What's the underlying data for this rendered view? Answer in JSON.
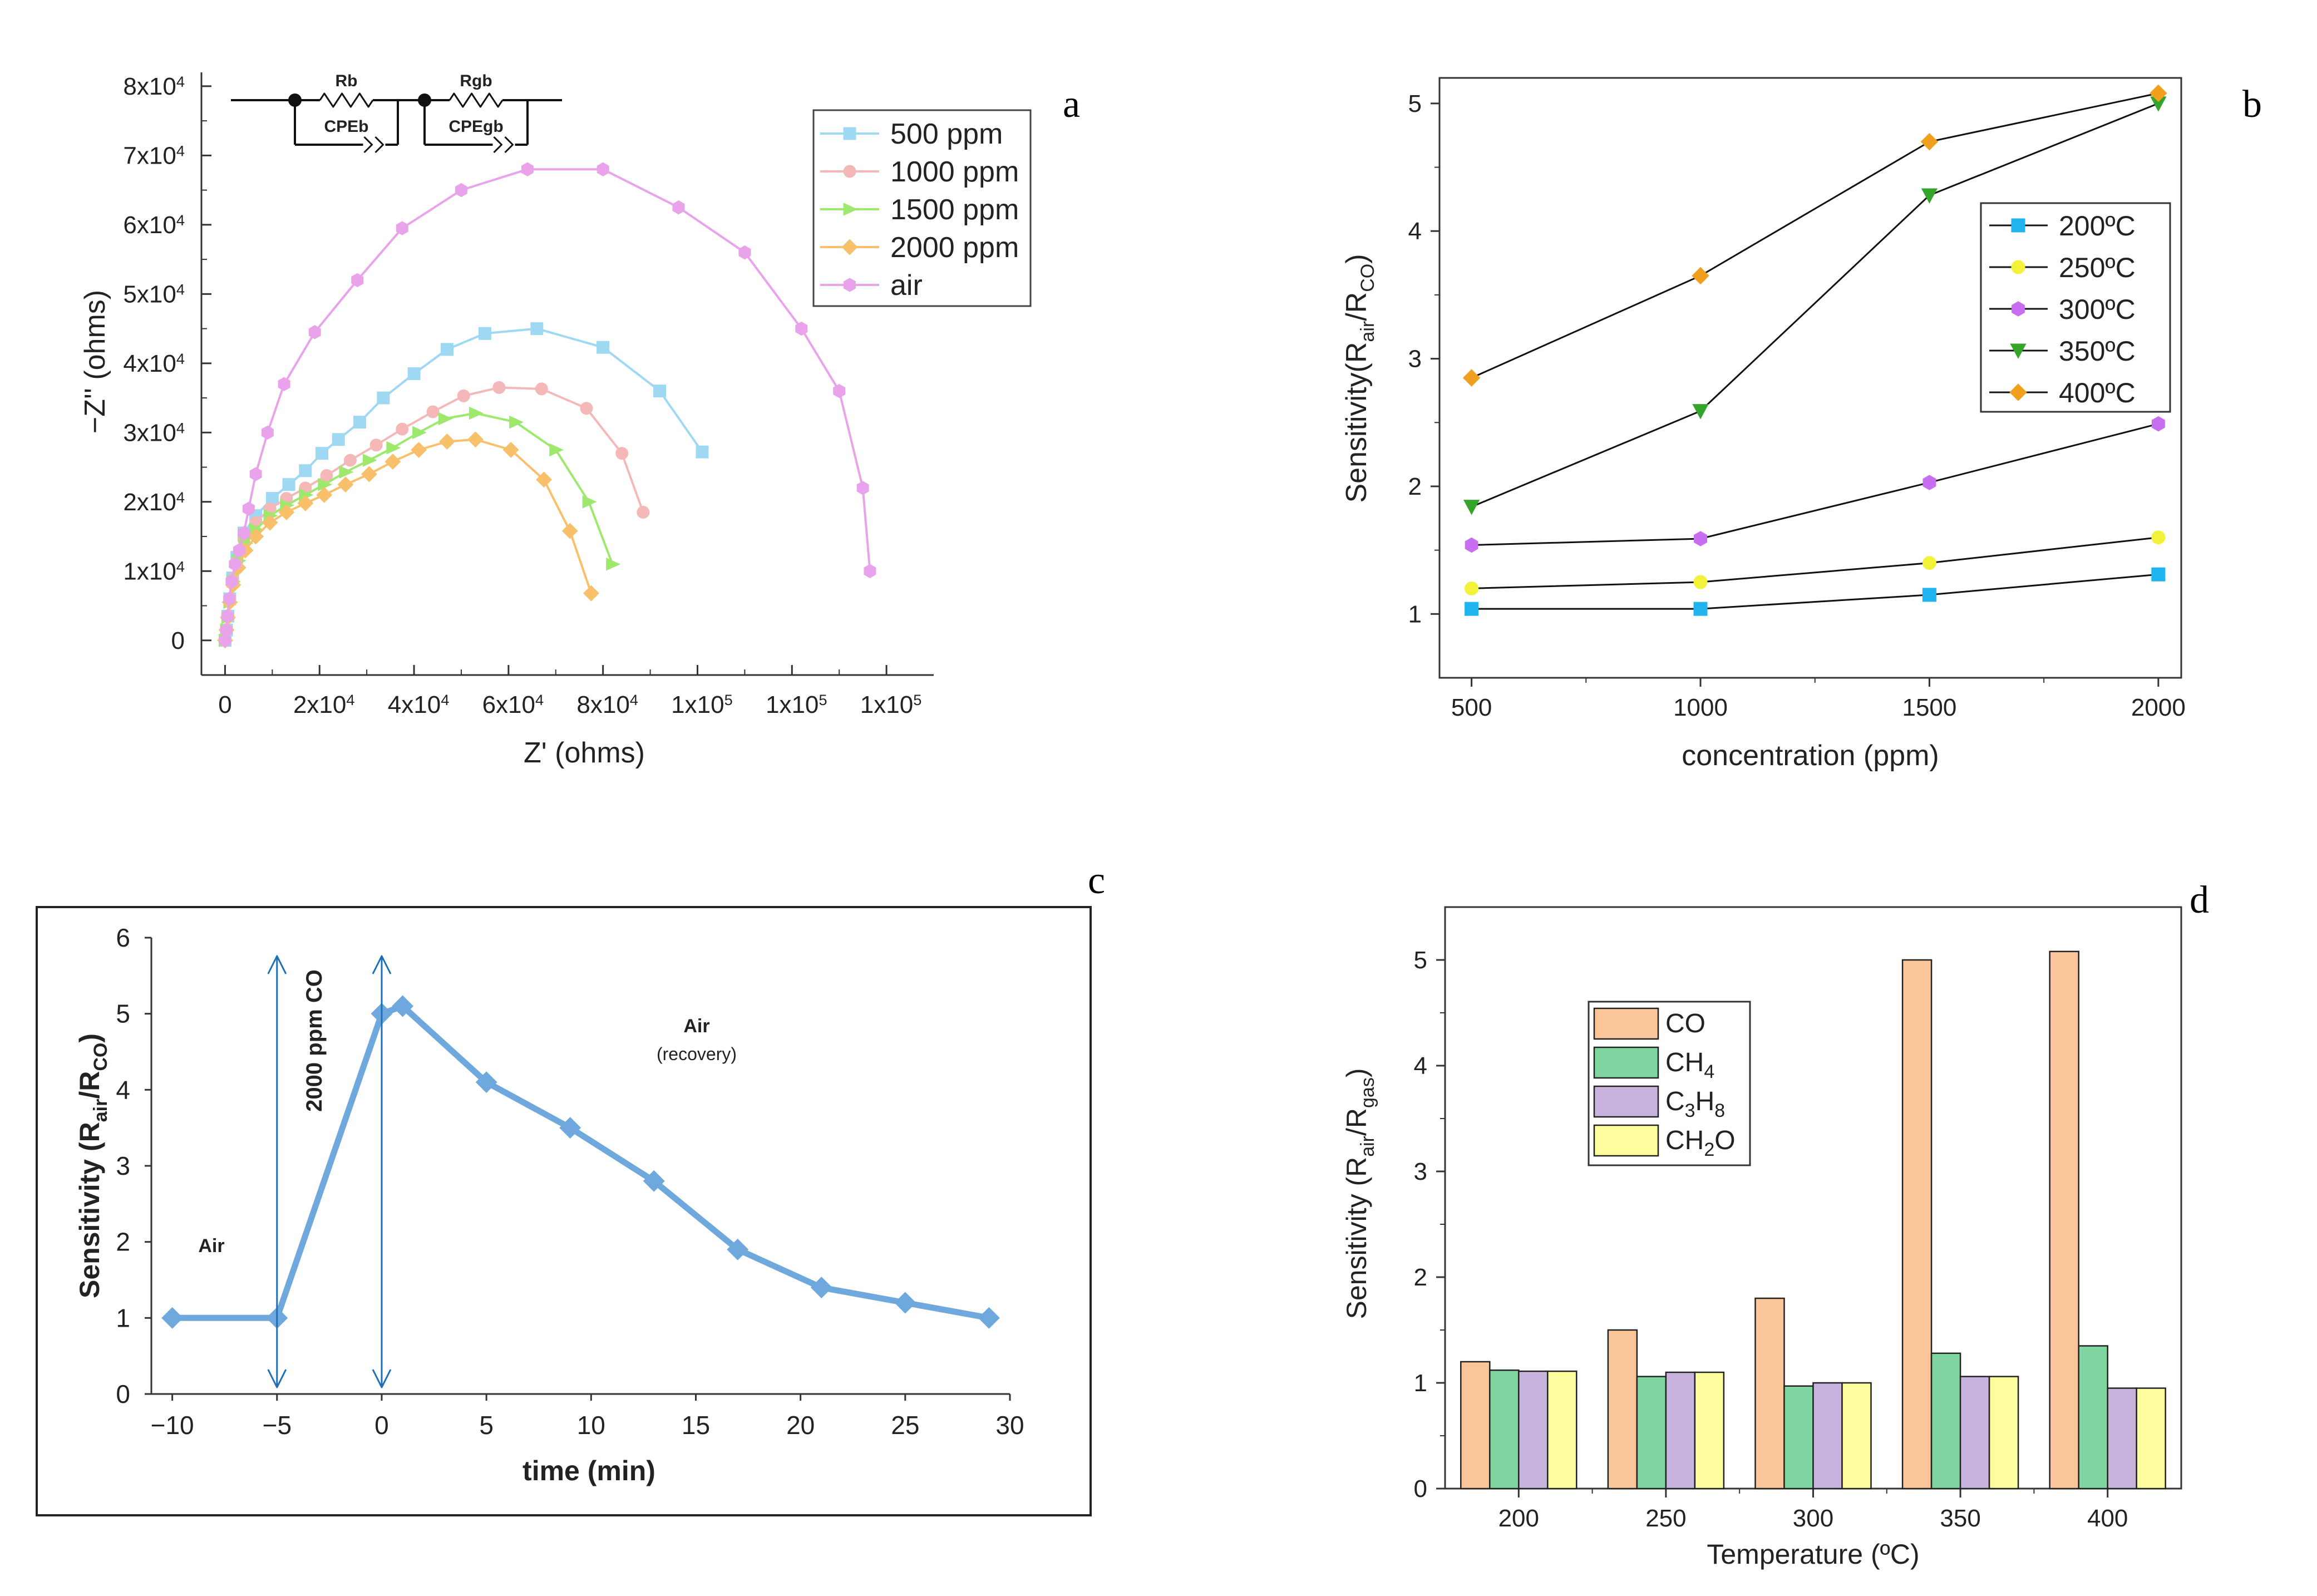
{
  "panel_letters": {
    "a": "a",
    "b": "b",
    "c": "c",
    "d": "d"
  },
  "chart_data": [
    {
      "panel": "a",
      "type": "line",
      "title": "",
      "xlabel": "Z' (ohms)",
      "ylabel": "−Z'' (ohms)",
      "xlim": [
        -5000,
        150000
      ],
      "ylim": [
        -5000,
        82000
      ],
      "xtick_values": [
        0,
        20000,
        40000,
        60000,
        80000,
        100000,
        120000,
        140000
      ],
      "xtick_labels": [
        {
          "pre": "0",
          "sup": ""
        },
        {
          "pre": "2x10",
          "sup": "4"
        },
        {
          "pre": "4x10",
          "sup": "4"
        },
        {
          "pre": "6x10",
          "sup": "4"
        },
        {
          "pre": "8x10",
          "sup": "4"
        },
        {
          "pre": "1x10",
          "sup": "5"
        },
        {
          "pre": "1x10",
          "sup": "5"
        },
        {
          "pre": "1x10",
          "sup": "5"
        }
      ],
      "ytick_values": [
        0,
        10000,
        20000,
        30000,
        40000,
        50000,
        60000,
        70000,
        80000
      ],
      "ytick_labels": [
        {
          "pre": "0",
          "sup": ""
        },
        {
          "pre": "1x10",
          "sup": "4"
        },
        {
          "pre": "2x10",
          "sup": "4"
        },
        {
          "pre": "3x10",
          "sup": "4"
        },
        {
          "pre": "4x10",
          "sup": "4"
        },
        {
          "pre": "5x10",
          "sup": "4"
        },
        {
          "pre": "6x10",
          "sup": "4"
        },
        {
          "pre": "7x10",
          "sup": "4"
        },
        {
          "pre": "8x10",
          "sup": "4"
        }
      ],
      "circuit": {
        "r1": "Rb",
        "c1": "CPEb",
        "r2": "Rgb",
        "c2": "CPEgb"
      },
      "legend_position": "top-right",
      "series": [
        {
          "name": "500 ppm",
          "color": "#9fd8f2",
          "marker": "square",
          "points": [
            [
              0,
              0
            ],
            [
              300,
              1500
            ],
            [
              600,
              3500
            ],
            [
              1000,
              6000
            ],
            [
              1600,
              9000
            ],
            [
              2500,
              12000
            ],
            [
              4000,
              15500
            ],
            [
              6500,
              18000
            ],
            [
              10000,
              20500
            ],
            [
              13500,
              22500
            ],
            [
              17000,
              24500
            ],
            [
              20500,
              27000
            ],
            [
              24000,
              29000
            ],
            [
              28500,
              31500
            ],
            [
              33500,
              35000
            ],
            [
              40000,
              38500
            ],
            [
              47000,
              42000
            ],
            [
              55000,
              44300
            ],
            [
              66000,
              45000
            ],
            [
              80000,
              42300
            ],
            [
              92000,
              36000
            ],
            [
              101000,
              27200
            ]
          ]
        },
        {
          "name": "1000 ppm",
          "color": "#f5b8b8",
          "marker": "circle",
          "points": [
            [
              0,
              0
            ],
            [
              300,
              1500
            ],
            [
              600,
              3500
            ],
            [
              1000,
              6000
            ],
            [
              1600,
              8800
            ],
            [
              2500,
              11500
            ],
            [
              4000,
              14500
            ],
            [
              6500,
              17000
            ],
            [
              9500,
              19000
            ],
            [
              13000,
              20500
            ],
            [
              17000,
              22000
            ],
            [
              21500,
              23800
            ],
            [
              26500,
              26000
            ],
            [
              32000,
              28200
            ],
            [
              37500,
              30500
            ],
            [
              44000,
              33000
            ],
            [
              50500,
              35300
            ],
            [
              58000,
              36500
            ],
            [
              67000,
              36300
            ],
            [
              76500,
              33500
            ],
            [
              84000,
              27000
            ],
            [
              88500,
              18500
            ]
          ]
        },
        {
          "name": "1500 ppm",
          "color": "#9ee86e",
          "marker": "triangle-right",
          "points": [
            [
              0,
              0
            ],
            [
              300,
              1500
            ],
            [
              600,
              3300
            ],
            [
              1000,
              5500
            ],
            [
              1700,
              8500
            ],
            [
              2800,
              11500
            ],
            [
              4300,
              14000
            ],
            [
              6500,
              16000
            ],
            [
              9500,
              18000
            ],
            [
              13000,
              19500
            ],
            [
              17000,
              21000
            ],
            [
              21000,
              22500
            ],
            [
              25500,
              24300
            ],
            [
              30500,
              26000
            ],
            [
              35500,
              27800
            ],
            [
              41000,
              30000
            ],
            [
              46500,
              32000
            ],
            [
              53000,
              32800
            ],
            [
              61500,
              31500
            ],
            [
              70000,
              27500
            ],
            [
              77000,
              20000
            ],
            [
              82000,
              11000
            ]
          ]
        },
        {
          "name": "2000 ppm",
          "color": "#f8c06a",
          "marker": "diamond",
          "points": [
            [
              0,
              0
            ],
            [
              300,
              1500
            ],
            [
              600,
              3300
            ],
            [
              1000,
              5500
            ],
            [
              1700,
              8000
            ],
            [
              2800,
              10500
            ],
            [
              4300,
              13000
            ],
            [
              6500,
              15000
            ],
            [
              9500,
              17000
            ],
            [
              13000,
              18500
            ],
            [
              17000,
              19800
            ],
            [
              21000,
              21000
            ],
            [
              25500,
              22500
            ],
            [
              30500,
              24000
            ],
            [
              35500,
              25800
            ],
            [
              41000,
              27500
            ],
            [
              47000,
              28700
            ],
            [
              53000,
              29000
            ],
            [
              60500,
              27500
            ],
            [
              67500,
              23200
            ],
            [
              73000,
              15800
            ],
            [
              77500,
              6800
            ]
          ]
        },
        {
          "name": "air",
          "color": "#e9a3ea",
          "marker": "hexagon",
          "points": [
            [
              0,
              0
            ],
            [
              300,
              1500
            ],
            [
              500,
              3500
            ],
            [
              900,
              6000
            ],
            [
              1400,
              8500
            ],
            [
              2100,
              11000
            ],
            [
              3000,
              13000
            ],
            [
              4000,
              15500
            ],
            [
              5000,
              19000
            ],
            [
              6500,
              24000
            ],
            [
              9000,
              30000
            ],
            [
              12500,
              37000
            ],
            [
              19000,
              44500
            ],
            [
              28000,
              52000
            ],
            [
              37500,
              59500
            ],
            [
              50000,
              65000
            ],
            [
              64000,
              68000
            ],
            [
              80000,
              68000
            ],
            [
              96000,
              62500
            ],
            [
              110000,
              56000
            ],
            [
              122000,
              45000
            ],
            [
              130000,
              36000
            ],
            [
              135000,
              22000
            ],
            [
              136500,
              10000
            ]
          ]
        }
      ]
    },
    {
      "panel": "b",
      "type": "line",
      "title": "",
      "xlabel": "concentration (ppm)",
      "ylabel_parts": {
        "pre": "Sensitivity(R",
        "sub1": "air",
        "mid": "/R",
        "sub2": "CO",
        "post": ")"
      },
      "x": [
        500,
        1000,
        1500,
        2000
      ],
      "xlim": [
        430,
        2050
      ],
      "ylim": [
        0.5,
        5.2
      ],
      "xticks": [
        500,
        1000,
        1500,
        2000
      ],
      "yticks": [
        1,
        2,
        3,
        4,
        5
      ],
      "legend_position": "middle-right",
      "series": [
        {
          "name": "200ºC",
          "color": "#1fb4f0",
          "marker": "square",
          "values": [
            1.04,
            1.04,
            1.15,
            1.31
          ]
        },
        {
          "name": "250ºC",
          "color": "#f2f23a",
          "marker": "circle",
          "values": [
            1.2,
            1.25,
            1.4,
            1.6
          ]
        },
        {
          "name": "300ºC",
          "color": "#c86ef0",
          "marker": "hexagon",
          "values": [
            1.54,
            1.59,
            2.03,
            2.49
          ]
        },
        {
          "name": "350ºC",
          "color": "#34a52a",
          "marker": "triangle-down",
          "values": [
            1.84,
            2.59,
            4.28,
            5.0
          ]
        },
        {
          "name": "400ºC",
          "color": "#f0a01e",
          "marker": "diamond",
          "values": [
            2.85,
            3.65,
            4.7,
            5.08
          ]
        }
      ]
    },
    {
      "panel": "c",
      "type": "line",
      "title": "",
      "xlabel": "time (min)",
      "ylabel_parts": {
        "pre": "Sensitivity (R",
        "sub1": "air",
        "mid": "/R",
        "sub2": "CO",
        "post": ")"
      },
      "x": [
        -10,
        -5,
        0,
        1,
        5,
        9,
        13,
        17,
        21,
        25,
        29
      ],
      "values": [
        1,
        1,
        5,
        5.1,
        4.1,
        3.5,
        2.8,
        1.9,
        1.4,
        1.2,
        1.0
      ],
      "xlim": [
        -11,
        30
      ],
      "ylim": [
        0,
        6
      ],
      "xticks": [
        -10,
        -5,
        0,
        5,
        10,
        15,
        20,
        25,
        30
      ],
      "xtick_labels": [
        "−10",
        "−5",
        "0",
        "5",
        "10",
        "15",
        "20",
        "25",
        "30"
      ],
      "yticks": [
        0,
        1,
        2,
        3,
        4,
        5,
        6
      ],
      "series_color": "#6fa8dc",
      "arrow_color": "#1f6fb5",
      "arrows_at_x": [
        -5,
        0
      ],
      "annotations": {
        "air_left": "Air",
        "exposure": "2000 ppm CO",
        "air_right": "Air",
        "recovery": "(recovery)"
      }
    },
    {
      "panel": "d",
      "type": "bar",
      "title": "",
      "xlabel": "Temperature (ºC)",
      "ylabel_parts": {
        "pre": "Sensitivity (R",
        "sub1": "air",
        "mid": "/R",
        "sub2": "gas",
        "post": ")"
      },
      "categories": [
        "200",
        "250",
        "300",
        "350",
        "400"
      ],
      "ylim": [
        0,
        5.5
      ],
      "yticks": [
        0,
        1,
        2,
        3,
        4,
        5
      ],
      "legend_position": "top-left",
      "series": [
        {
          "name": "CO",
          "color": "#fbc59a",
          "legend_parts": [
            {
              "t": "CO",
              "sub": false
            }
          ],
          "values": [
            1.2,
            1.5,
            1.8,
            5.0,
            5.08
          ]
        },
        {
          "name": "CH4",
          "color": "#7fd6a0",
          "legend_parts": [
            {
              "t": "CH",
              "sub": false
            },
            {
              "t": "4",
              "sub": true
            }
          ],
          "values": [
            1.12,
            1.06,
            0.97,
            1.28,
            1.35
          ]
        },
        {
          "name": "C3H8",
          "color": "#c8b3de",
          "legend_parts": [
            {
              "t": "C",
              "sub": false
            },
            {
              "t": "3",
              "sub": true
            },
            {
              "t": "H",
              "sub": false
            },
            {
              "t": "8",
              "sub": true
            }
          ],
          "values": [
            1.11,
            1.1,
            1.0,
            1.06,
            0.95
          ]
        },
        {
          "name": "CH2O",
          "color": "#fdfd9e",
          "legend_parts": [
            {
              "t": "CH",
              "sub": false
            },
            {
              "t": "2",
              "sub": true
            },
            {
              "t": "O",
              "sub": false
            }
          ],
          "values": [
            1.11,
            1.1,
            1.0,
            1.06,
            0.95
          ]
        }
      ]
    }
  ]
}
